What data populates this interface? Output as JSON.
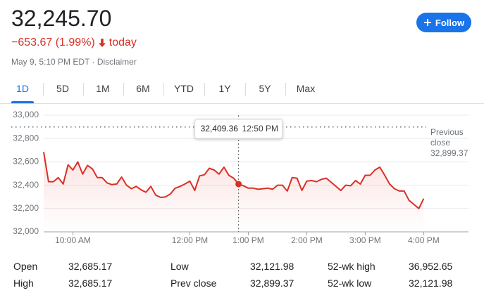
{
  "header": {
    "price": "32,245.70",
    "change": "−653.67 (1.99%)",
    "change_period": "today",
    "timestamp": "May 9, 5:10 PM EDT · Disclaimer",
    "follow_button": "Follow"
  },
  "range_tabs": [
    {
      "label": "1D",
      "selected": true
    },
    {
      "label": "5D",
      "selected": false
    },
    {
      "label": "1M",
      "selected": false
    },
    {
      "label": "6M",
      "selected": false
    },
    {
      "label": "YTD",
      "selected": false
    },
    {
      "label": "1Y",
      "selected": false
    },
    {
      "label": "5Y",
      "selected": false
    },
    {
      "label": "Max",
      "selected": false
    }
  ],
  "chart_data": {
    "type": "line",
    "color": "#d93025",
    "grid": true,
    "x": [
      570,
      575,
      580,
      585,
      590,
      595,
      600,
      605,
      610,
      615,
      620,
      625,
      630,
      635,
      640,
      645,
      650,
      655,
      660,
      665,
      670,
      675,
      680,
      685,
      690,
      695,
      700,
      705,
      710,
      715,
      720,
      725,
      730,
      735,
      740,
      745,
      750,
      755,
      760,
      765,
      770,
      775,
      780,
      785,
      790,
      795,
      800,
      805,
      810,
      815,
      820,
      825,
      830,
      835,
      840,
      845,
      850,
      855,
      860,
      865,
      870,
      875,
      880,
      885,
      890,
      895,
      900,
      905,
      910,
      915,
      920,
      925,
      930,
      935,
      940,
      945,
      950,
      955,
      960
    ],
    "values": [
      32685,
      32430,
      32430,
      32465,
      32410,
      32575,
      32530,
      32600,
      32495,
      32570,
      32540,
      32465,
      32465,
      32420,
      32405,
      32410,
      32470,
      32400,
      32370,
      32390,
      32360,
      32340,
      32390,
      32315,
      32295,
      32300,
      32325,
      32375,
      32390,
      32410,
      32435,
      32355,
      32480,
      32490,
      32545,
      32530,
      32495,
      32555,
      32485,
      32460,
      32409.36,
      32395,
      32375,
      32375,
      32365,
      32370,
      32375,
      32365,
      32400,
      32400,
      32350,
      32465,
      32460,
      32355,
      32435,
      32440,
      32430,
      32450,
      32460,
      32425,
      32390,
      32355,
      32400,
      32395,
      32440,
      32410,
      32485,
      32485,
      32530,
      32555,
      32485,
      32410,
      32370,
      32350,
      32350,
      32270,
      32235,
      32200,
      32285
    ],
    "xlim": [
      570,
      1006
    ],
    "xticks": [
      {
        "value": 600,
        "label": "10:00 AM"
      },
      {
        "value": 720,
        "label": "12:00 PM"
      },
      {
        "value": 780,
        "label": "1:00 PM"
      },
      {
        "value": 840,
        "label": "2:00 PM"
      },
      {
        "value": 900,
        "label": "3:00 PM"
      },
      {
        "value": 960,
        "label": "4:00 PM"
      }
    ],
    "ylim": [
      32000,
      33000
    ],
    "yticks": [
      {
        "value": 32000,
        "label": "32,000"
      },
      {
        "value": 32200,
        "label": "32,200"
      },
      {
        "value": 32400,
        "label": "32,400"
      },
      {
        "value": 32600,
        "label": "32,600"
      },
      {
        "value": 32800,
        "label": "32,800"
      },
      {
        "value": 33000,
        "label": "33,000"
      }
    ],
    "reference_line": {
      "label": "Previous close",
      "value": 32899.37,
      "value_label": "32,899.37"
    },
    "tooltip": {
      "x": {
        "value": 770,
        "label": "12:50 PM"
      },
      "y": {
        "value": 32409.36,
        "label": "32,409.36"
      }
    }
  },
  "stats": [
    [
      [
        "Open",
        "32,685.17"
      ],
      [
        "Low",
        "32,121.98"
      ],
      [
        "52-wk high",
        "36,952.65"
      ]
    ],
    [
      [
        "High",
        "32,685.17"
      ],
      [
        "Prev close",
        "32,899.37"
      ],
      [
        "52-wk low",
        "32,121.98"
      ]
    ]
  ]
}
